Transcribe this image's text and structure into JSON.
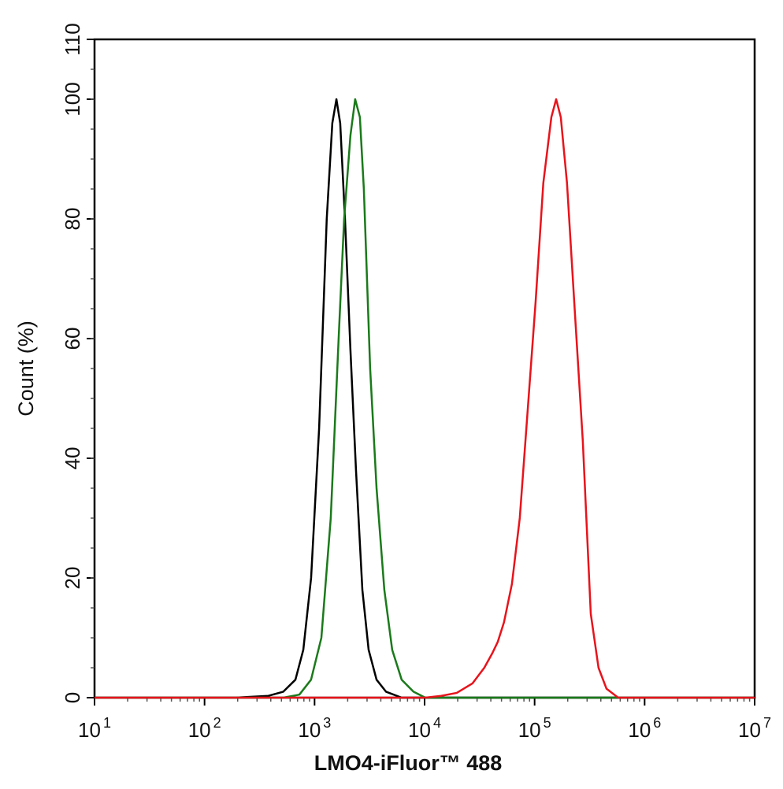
{
  "chart_data": {
    "type": "line",
    "x_label": "LMO4-iFluor™ 488",
    "y_label": "Count (%)",
    "xscale": "log",
    "xlim": [
      10,
      10000000
    ],
    "ylim": [
      0,
      110
    ],
    "xticks": [
      {
        "value": 10,
        "label": "10",
        "exponent": "1"
      },
      {
        "value": 100,
        "label": "10",
        "exponent": "2"
      },
      {
        "value": 1000,
        "label": "10",
        "exponent": "3"
      },
      {
        "value": 10000,
        "label": "10",
        "exponent": "4"
      },
      {
        "value": 100000,
        "label": "10",
        "exponent": "5"
      },
      {
        "value": 1000000,
        "label": "10",
        "exponent": "6"
      },
      {
        "value": 10000000,
        "label": "10",
        "exponent": "7"
      }
    ],
    "yticks": [
      0,
      20,
      40,
      60,
      80,
      100,
      110
    ],
    "series": [
      {
        "color": "#000000",
        "x": [
          10,
          190,
          380,
          520,
          670,
          790,
          930,
          1100,
          1290,
          1450,
          1580,
          1710,
          1890,
          2120,
          2380,
          2720,
          3100,
          3660,
          4460,
          6190,
          10000000
        ],
        "values": [
          0,
          0,
          0.3,
          1,
          3,
          8,
          20,
          45,
          80,
          96,
          100,
          96,
          80,
          58,
          38,
          18,
          8,
          3,
          1,
          0,
          0
        ]
      },
      {
        "color": "#1a7a1a",
        "x": [
          10,
          520,
          727,
          929,
          1153,
          1403,
          1655,
          1857,
          2120,
          2339,
          2582,
          2805,
          3200,
          3660,
          4307,
          5077,
          6190,
          7920,
          10140,
          10000000
        ],
        "values": [
          0,
          0,
          0.5,
          3,
          10,
          30,
          60,
          80,
          94,
          100,
          97,
          85,
          55,
          35,
          18,
          8,
          3,
          1,
          0,
          0
        ]
      },
      {
        "color": "#e8131b",
        "x": [
          10,
          10140,
          14130,
          19600,
          27300,
          34900,
          41200,
          46200,
          52700,
          62200,
          73300,
          86500,
          102000,
          120000,
          142000,
          157000,
          173000,
          197000,
          233000,
          274000,
          324000,
          381000,
          450000,
          575000,
          738000,
          10000000
        ],
        "values": [
          0,
          0,
          0.3,
          0.8,
          2.4,
          5,
          7.4,
          9.3,
          12.6,
          19,
          30,
          48,
          66,
          86,
          97,
          100,
          97,
          86,
          64,
          43,
          14,
          5,
          1.5,
          0,
          0,
          0
        ]
      }
    ]
  }
}
